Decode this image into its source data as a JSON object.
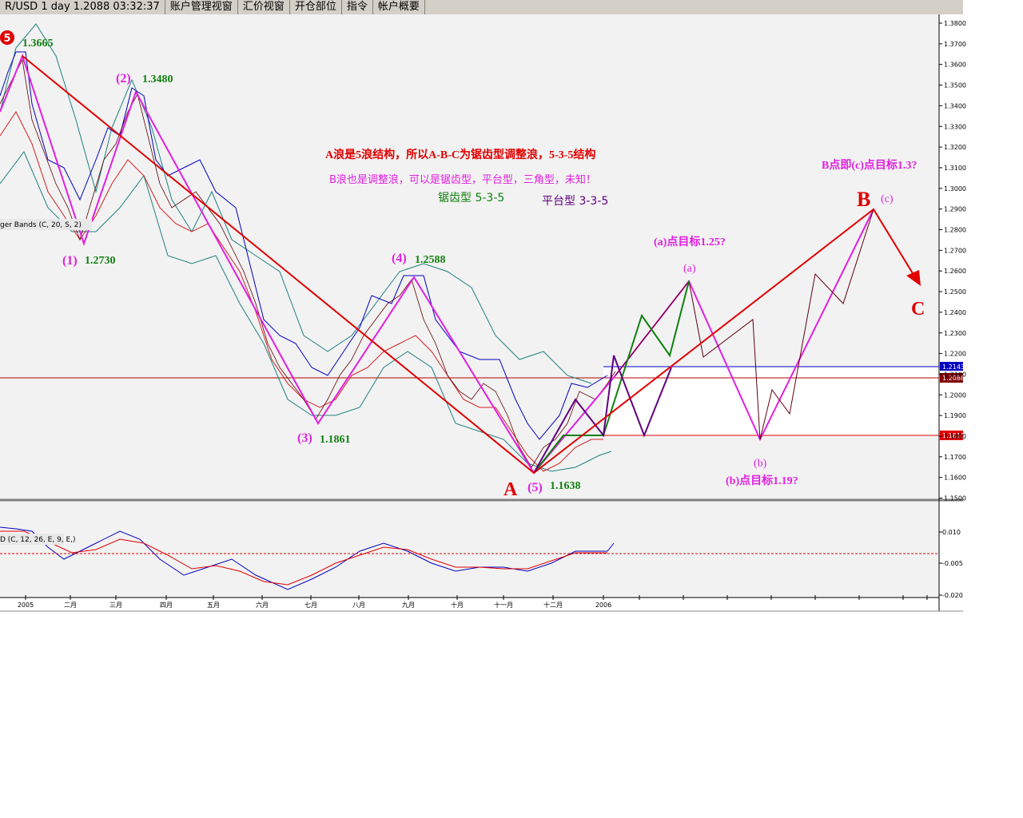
{
  "tabs": [
    "R/USD 1 day 1.2088 03:32:37",
    "账户管理视窗",
    "汇价视窗",
    "开仓部位",
    "指令",
    "帐户概要"
  ],
  "price_axis": [
    "1.3800",
    "1.3700",
    "1.3600",
    "1.3500",
    "1.3400",
    "1.3300",
    "1.3200",
    "1.3100",
    "1.3000",
    "1.2900",
    "1.2800",
    "1.2700",
    "1.2600",
    "1.2500",
    "1.2400",
    "1.2300",
    "1.2200",
    "1.2100",
    "1.2000",
    "1.1900",
    "1.1800",
    "1.1700",
    "1.1600",
    "1.1500"
  ],
  "price_tags": {
    "upper": "1.2143",
    "last": "1.2088",
    "lower": "1.1810"
  },
  "indicator_axis": [
    "0.010",
    "-0.005",
    "-0.020"
  ],
  "time_axis": [
    "2005",
    "二月",
    "三月",
    "四月",
    "五月",
    "六月",
    "七月",
    "八月",
    "九月",
    "十月",
    "十一月",
    "十二月",
    "2006"
  ],
  "indicators": {
    "bollinger": "ger Bands (C, 20, S, 2)",
    "macd": "D (C, 12, 26, E, 9, E,)"
  },
  "waves": {
    "w5_marker": "5",
    "w5_price": "1.3665",
    "w2": "(2)",
    "w2_price": "1.3480",
    "w1": "(1)",
    "w1_price": "1.2730",
    "w3": "(3)",
    "w3_price": "1.1861",
    "w4": "(4)",
    "w4_price": "1.2588",
    "w5": "(5)",
    "w5_low_price": "1.1638",
    "A": "A",
    "B": "B",
    "C": "C",
    "a": "(a)",
    "b": "(b)",
    "c": "(c)"
  },
  "notes": {
    "main": "A浪是5浪结构，所以A-B-C为锯齿型调整浪，5-3-5结构",
    "b_wave": "B浪也是调整浪，可以是锯齿型，平台型，三角型，未知！",
    "zigzag": "锯齿型 5-3-5",
    "flat": "平台型 3-3-5",
    "b_target": "B点即(c)点目标1.3?",
    "a_target": "(a)点目标1.25?",
    "bb_target": "(b)点目标1.19?"
  }
}
